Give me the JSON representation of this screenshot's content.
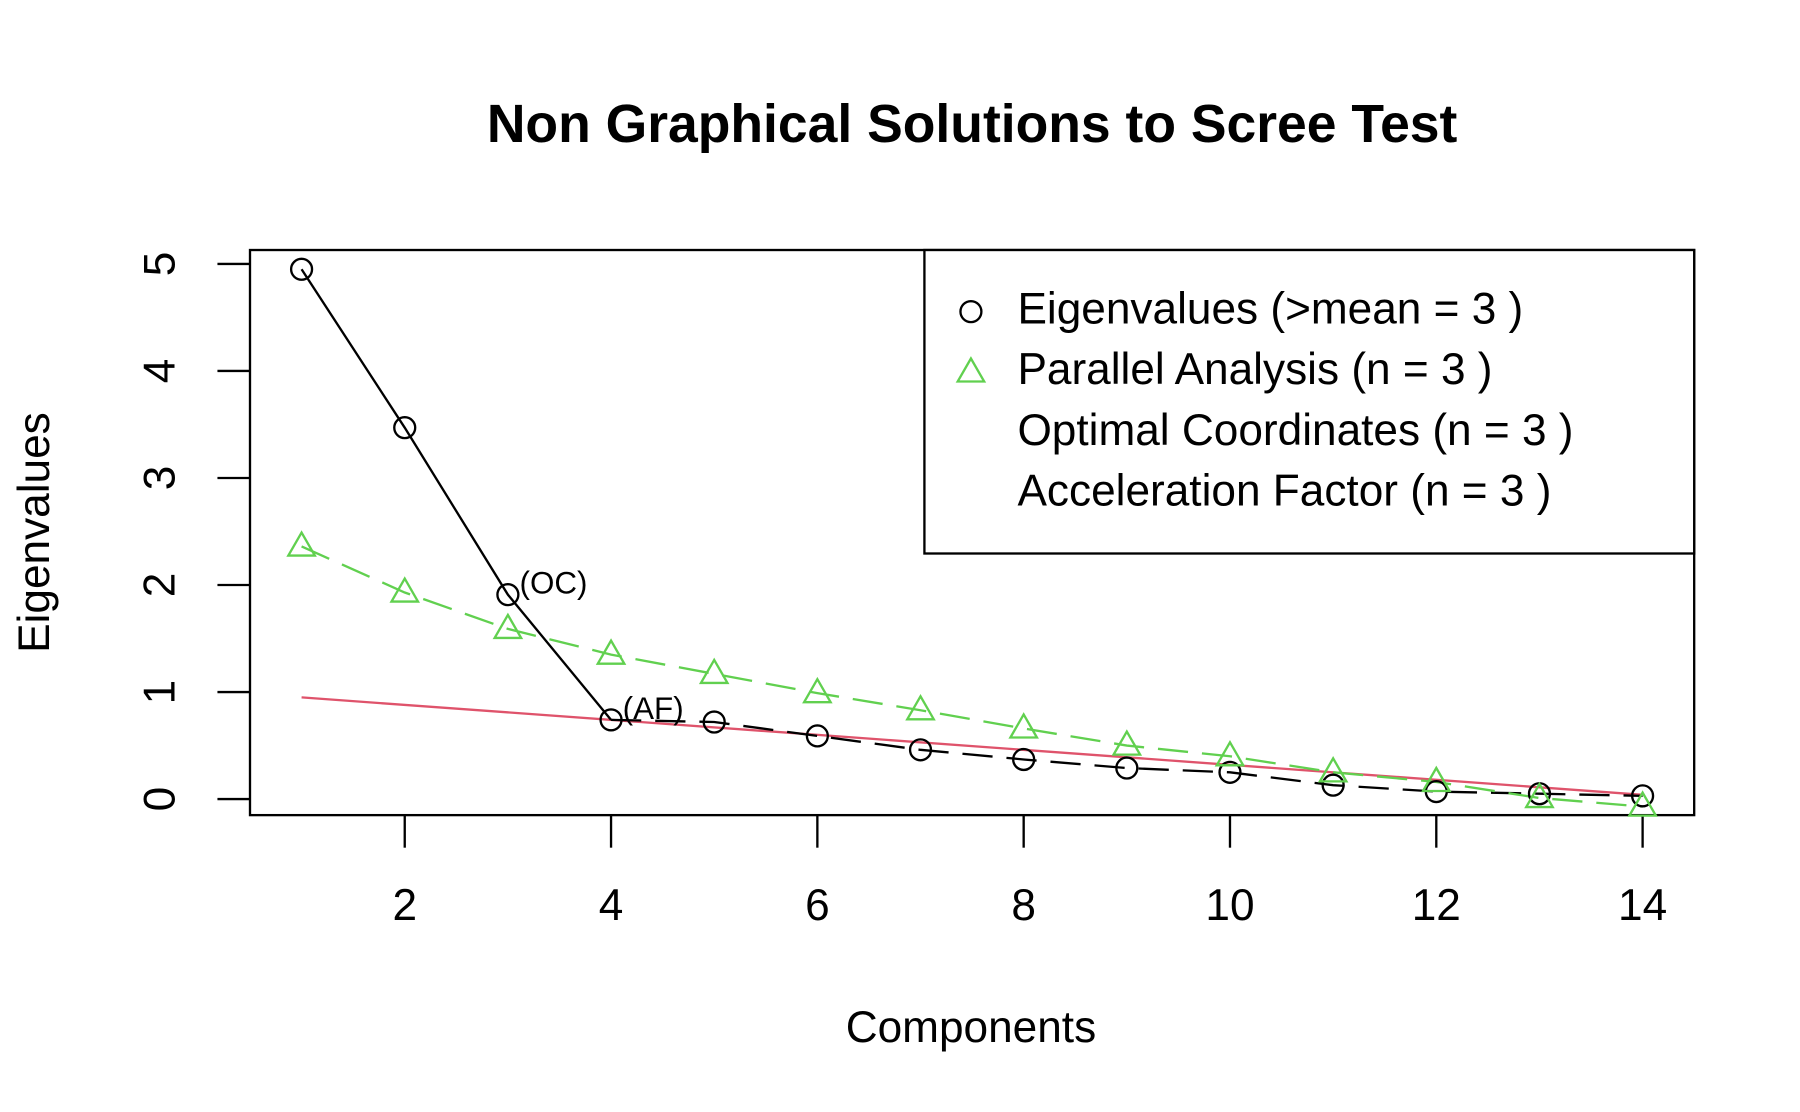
{
  "chart_data": {
    "type": "line",
    "title": "Non Graphical Solutions to Scree Test",
    "x_label": "Components",
    "y_label": "Eigenvalues",
    "x": [
      1,
      2,
      3,
      4,
      5,
      6,
      7,
      8,
      9,
      10,
      11,
      12,
      13,
      14
    ],
    "series": [
      {
        "name": "Eigenvalues (>mean  =  3 )",
        "color": "#000000",
        "marker": "circle",
        "values": [
          4.95,
          3.47,
          1.91,
          0.74,
          0.72,
          0.59,
          0.46,
          0.37,
          0.29,
          0.25,
          0.13,
          0.07,
          0.05,
          0.03
        ]
      },
      {
        "name": "Parallel Analysis (n =  3 )",
        "color": "#61d04f",
        "marker": "triangle",
        "values": [
          2.36,
          1.93,
          1.59,
          1.35,
          1.17,
          0.99,
          0.83,
          0.66,
          0.5,
          0.4,
          0.25,
          0.16,
          0.01,
          -0.07
        ]
      }
    ],
    "legend_extra": [
      {
        "name": "Optimal Coordinates (n =  3 )",
        "color": "#df536b"
      },
      {
        "name": "Acceleration Factor (n =  3 )",
        "color": "#2297e6"
      }
    ],
    "oc_line": {
      "x": [
        1,
        14
      ],
      "values": [
        0.95,
        0.04
      ],
      "color": "#df536b"
    },
    "annotations": [
      {
        "text": "(OC)",
        "x": 3,
        "y": 1.91,
        "color": "#df536b"
      },
      {
        "text": "(AF)",
        "x": 4,
        "y": 0.74,
        "color": "#2297e6"
      }
    ],
    "xlim": [
      0.5,
      14.5
    ],
    "ylim": [
      -0.15,
      5.13
    ],
    "xticks": [
      2,
      4,
      6,
      8,
      10,
      12,
      14
    ],
    "yticks": [
      0,
      1,
      2,
      3,
      4,
      5
    ],
    "legend": "top-right"
  }
}
